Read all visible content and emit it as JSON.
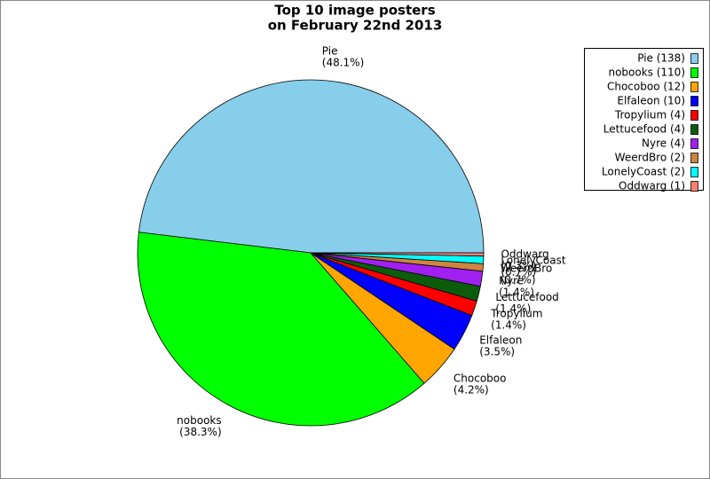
{
  "chart_data": {
    "type": "pie",
    "title": [
      "Top 10 image posters",
      "on February 22nd 2013"
    ],
    "categories": [
      "Pie",
      "nobooks",
      "Chocoboo",
      "Elfaleon",
      "Tropylium",
      "Lettucefood",
      "Nyre",
      "WeerdBro",
      "LonelyCoast",
      "Oddwarg"
    ],
    "values": [
      48.1,
      38.3,
      4.2,
      3.5,
      1.4,
      1.4,
      1.4,
      0.7,
      0.7,
      0.3
    ],
    "value_labels": [
      "(48.1%)",
      "(38.3%)",
      "(4.2%)",
      "(3.5%)",
      "(1.4%)",
      "(1.4%)",
      "(1.4%)",
      "(0.7%)",
      "(0.7%)",
      "(0.3%)"
    ],
    "legend_labels": [
      "Pie (138)",
      "nobooks (110)",
      "Chocoboo (12)",
      "Elfaleon (10)",
      "Tropylium (4)",
      "Lettucefood (4)",
      "Nyre (4)",
      "WeerdBro (2)",
      "LonelyCoast (2)",
      "Oddwarg (1)"
    ],
    "colors": [
      "#87ceeb",
      "#00ff00",
      "#ffa500",
      "#0000ff",
      "#ff0000",
      "#0b5d0b",
      "#a020f0",
      "#cd853f",
      "#00ffff",
      "#fa8072"
    ],
    "legend": "upper right"
  }
}
